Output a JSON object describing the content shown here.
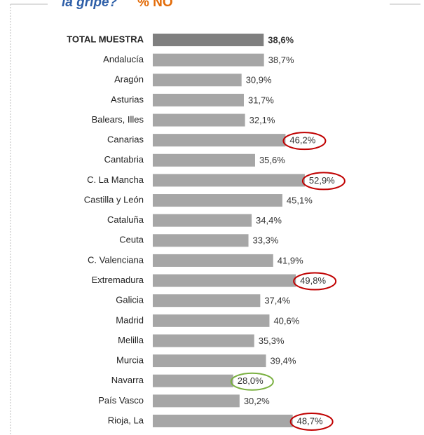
{
  "chart_data": {
    "type": "barh",
    "title": "la gripe?",
    "subtitle": "% NO",
    "categories": [
      "TOTAL MUESTRA",
      "Andalucía",
      "Aragón",
      "Asturias",
      "Balears, Illes",
      "Canarias",
      "Cantabria",
      "C. La Mancha",
      "Castilla y León",
      "Cataluña",
      "Ceuta",
      "C. Valenciana",
      "Extremadura",
      "Galicia",
      "Madrid",
      "Melilla",
      "Murcia",
      "Navarra",
      "País Vasco",
      "Rioja, La"
    ],
    "values": [
      38.6,
      38.7,
      30.9,
      31.7,
      32.1,
      46.2,
      35.6,
      52.9,
      45.1,
      34.4,
      33.3,
      41.9,
      49.8,
      37.4,
      40.6,
      35.3,
      39.4,
      28.0,
      30.2,
      48.7
    ],
    "value_labels": [
      "38,6%",
      "38,7%",
      "30,9%",
      "31,7%",
      "32,1%",
      "46,2%",
      "35,6%",
      "52,9%",
      "45,1%",
      "34,4%",
      "33,3%",
      "41,9%",
      "49,8%",
      "37,4%",
      "40,6%",
      "35,3%",
      "39,4%",
      "28,0%",
      "30,2%",
      "48,7%"
    ],
    "colors": [
      "#7f7f7f",
      "#a6a6a6",
      "#a6a6a6",
      "#a6a6a6",
      "#a6a6a6",
      "#a6a6a6",
      "#a6a6a6",
      "#a6a6a6",
      "#a6a6a6",
      "#a6a6a6",
      "#a6a6a6",
      "#a6a6a6",
      "#a6a6a6",
      "#a6a6a6",
      "#a6a6a6",
      "#a6a6a6",
      "#a6a6a6",
      "#a6a6a6",
      "#a6a6a6",
      "#a6a6a6"
    ],
    "circle_colors": [
      null,
      null,
      null,
      null,
      null,
      "#c00000",
      null,
      "#c00000",
      null,
      null,
      null,
      null,
      "#c00000",
      null,
      null,
      null,
      null,
      "#7ab040",
      null,
      "#c00000"
    ]
  }
}
